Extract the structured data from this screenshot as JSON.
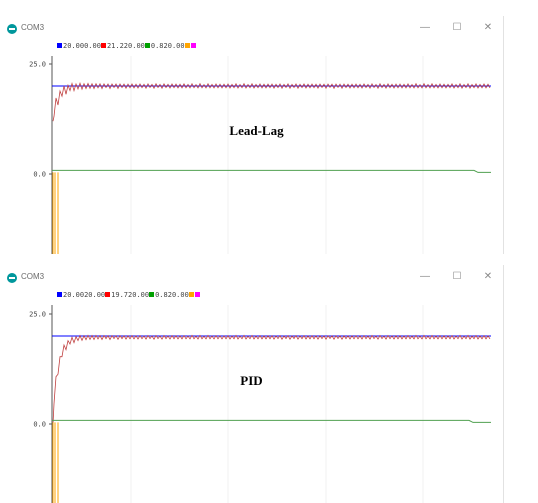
{
  "windows": [
    {
      "title": "COM3",
      "controls": {
        "minimize": "—",
        "maximize": "☐",
        "close": "✕"
      },
      "legend": [
        {
          "text": "20.000.00",
          "color": "#0000ff"
        },
        {
          "text": "21.220.00",
          "color": "#ff0000"
        },
        {
          "text": "0.820.00",
          "color": "#00a000"
        },
        {
          "text": "",
          "color": "#ffa500"
        },
        {
          "text": "",
          "color": "#ff00ff"
        }
      ],
      "overlay_label": "Lead-Lag",
      "chart_data": {
        "type": "line",
        "ylim": [
          0,
          25
        ],
        "ytick_labels": [
          "25.0",
          "0.0"
        ],
        "grid": true,
        "series": [
          {
            "name": "",
            "color": "#0000ff",
            "value": 20
          },
          {
            "name": "",
            "color": "#c04040",
            "mean": 20,
            "ripple": 0.6,
            "start": 12
          },
          {
            "name": "",
            "color": "#50a050",
            "value": 0.82
          },
          {
            "name": "",
            "color": "#ffa500",
            "value": -10
          }
        ]
      },
      "icons": {
        "app": "arduino-icon"
      },
      "accent": "#00979c"
    },
    {
      "title": "COM3",
      "controls": {
        "minimize": "—",
        "maximize": "☐",
        "close": "✕"
      },
      "legend": [
        {
          "text": "20.0020.00",
          "color": "#0000ff"
        },
        {
          "text": "19.720.00",
          "color": "#ff0000"
        },
        {
          "text": "0.820.00",
          "color": "#00a000"
        },
        {
          "text": "",
          "color": "#ffa500"
        },
        {
          "text": "",
          "color": "#ff00ff"
        }
      ],
      "overlay_label": "PID",
      "chart_data": {
        "type": "line",
        "ylim": [
          0,
          25
        ],
        "ytick_labels": [
          "25.0",
          "0.0"
        ],
        "grid": true,
        "series": [
          {
            "name": "",
            "color": "#0000ff",
            "value": 20
          },
          {
            "name": "",
            "color": "#c04040",
            "mean": 19.7,
            "ripple": 0.5,
            "start": 0
          },
          {
            "name": "",
            "color": "#50a050",
            "value": 0.82
          },
          {
            "name": "",
            "color": "#ffa500",
            "value": -10
          }
        ]
      },
      "icons": {
        "app": "arduino-icon"
      },
      "accent": "#00979c"
    }
  ]
}
